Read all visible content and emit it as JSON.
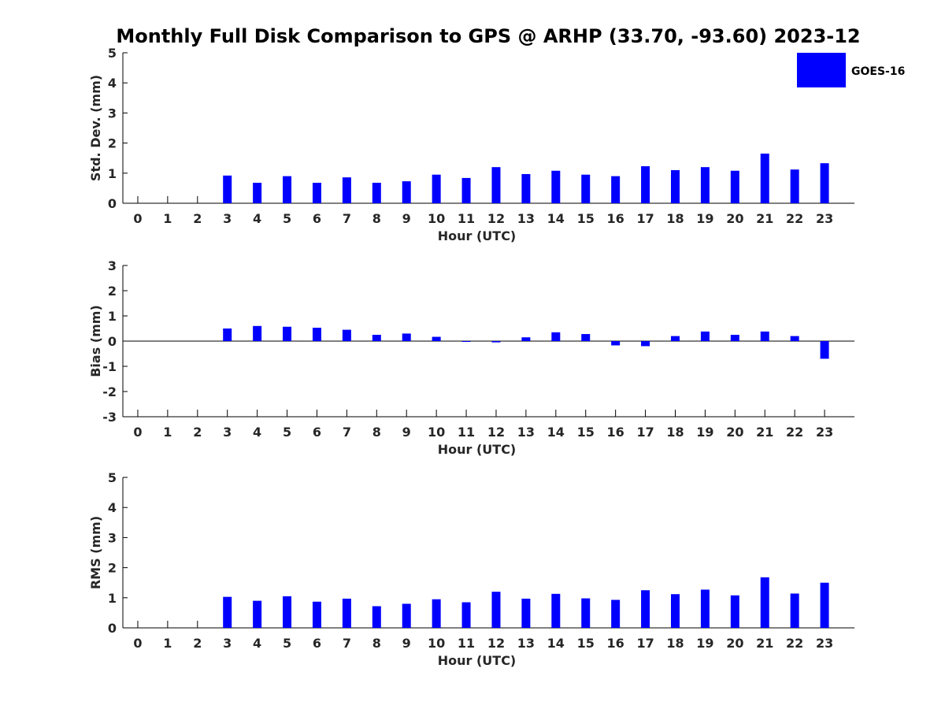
{
  "title": "Monthly Full Disk Comparison to GPS @ ARHP (33.70, -93.60) 2023-12",
  "legend": {
    "label": "GOES-16",
    "color": "#0000ff",
    "placement": "top-right"
  },
  "chart_data": [
    {
      "type": "bar",
      "categories": [
        "0",
        "1",
        "2",
        "3",
        "4",
        "5",
        "6",
        "7",
        "8",
        "9",
        "10",
        "11",
        "12",
        "13",
        "14",
        "15",
        "16",
        "17",
        "18",
        "19",
        "20",
        "21",
        "22",
        "23"
      ],
      "series": [
        {
          "name": "GOES-16",
          "values": [
            null,
            null,
            null,
            0.92,
            0.68,
            0.9,
            0.68,
            0.86,
            0.68,
            0.73,
            0.95,
            0.84,
            1.2,
            0.97,
            1.08,
            0.95,
            0.9,
            1.23,
            1.1,
            1.2,
            1.08,
            1.65,
            1.12,
            1.33
          ],
          "color": "#0000ff"
        }
      ],
      "xlabel": "Hour (UTC)",
      "ylabel": "Std. Dev. (mm)",
      "ylim": [
        0,
        5
      ],
      "yticks": [
        "0",
        "1",
        "2",
        "3",
        "4",
        "5"
      ],
      "grid": false
    },
    {
      "type": "bar",
      "categories": [
        "0",
        "1",
        "2",
        "3",
        "4",
        "5",
        "6",
        "7",
        "8",
        "9",
        "10",
        "11",
        "12",
        "13",
        "14",
        "15",
        "16",
        "17",
        "18",
        "19",
        "20",
        "21",
        "22",
        "23"
      ],
      "series": [
        {
          "name": "GOES-16",
          "values": [
            null,
            null,
            null,
            0.5,
            0.6,
            0.57,
            0.53,
            0.45,
            0.25,
            0.3,
            0.17,
            0.0,
            -0.05,
            0.15,
            0.35,
            0.28,
            -0.17,
            -0.2,
            0.2,
            0.38,
            0.25,
            0.38,
            0.2,
            -0.7
          ],
          "color": "#0000ff"
        }
      ],
      "xlabel": "Hour (UTC)",
      "ylabel": "Bias (mm)",
      "ylim": [
        -3,
        3
      ],
      "yticks": [
        "-3",
        "-2",
        "-1",
        "0",
        "1",
        "2",
        "3"
      ],
      "grid": false
    },
    {
      "type": "bar",
      "categories": [
        "0",
        "1",
        "2",
        "3",
        "4",
        "5",
        "6",
        "7",
        "8",
        "9",
        "10",
        "11",
        "12",
        "13",
        "14",
        "15",
        "16",
        "17",
        "18",
        "19",
        "20",
        "21",
        "22",
        "23"
      ],
      "series": [
        {
          "name": "GOES-16",
          "values": [
            null,
            null,
            null,
            1.03,
            0.9,
            1.05,
            0.87,
            0.97,
            0.72,
            0.8,
            0.95,
            0.85,
            1.2,
            0.97,
            1.13,
            0.98,
            0.93,
            1.25,
            1.12,
            1.27,
            1.08,
            1.68,
            1.14,
            1.5
          ],
          "color": "#0000ff"
        }
      ],
      "xlabel": "Hour (UTC)",
      "ylabel": "RMS (mm)",
      "ylim": [
        0,
        5
      ],
      "yticks": [
        "0",
        "1",
        "2",
        "3",
        "4",
        "5"
      ],
      "grid": false
    }
  ]
}
